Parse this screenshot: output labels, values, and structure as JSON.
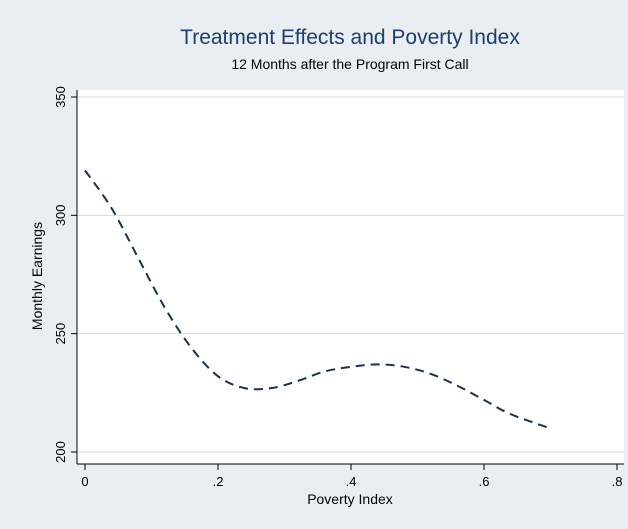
{
  "chart_data": {
    "type": "line",
    "title": "Treatment Effects and Poverty Index",
    "subtitle": "12 Months after the Program First Call",
    "xlabel": "Poverty Index",
    "ylabel": "Monthly Earnings",
    "xlim": [
      0,
      0.8
    ],
    "ylim": [
      200,
      350
    ],
    "xticks": [
      {
        "value": 0,
        "label": "0"
      },
      {
        "value": 0.2,
        "label": ".2"
      },
      {
        "value": 0.4,
        "label": ".4"
      },
      {
        "value": 0.6,
        "label": ".6"
      },
      {
        "value": 0.8,
        "label": ".8"
      }
    ],
    "yticks": [
      {
        "value": 200,
        "label": "200"
      },
      {
        "value": 250,
        "label": "250"
      },
      {
        "value": 300,
        "label": "300"
      },
      {
        "value": 350,
        "label": "350"
      }
    ],
    "grid": true,
    "series": [
      {
        "line_style": "dashed",
        "color": "#1b2f52",
        "x": [
          0,
          0.04,
          0.08,
          0.12,
          0.16,
          0.2,
          0.24,
          0.28,
          0.32,
          0.36,
          0.4,
          0.44,
          0.48,
          0.52,
          0.56,
          0.6,
          0.64,
          0.7
        ],
        "y": [
          319,
          303,
          282,
          261,
          244,
          232,
          227,
          227,
          230,
          234,
          236,
          237,
          236,
          233,
          228,
          222,
          216,
          210
        ]
      }
    ],
    "colors": {
      "outer_background": "#e9eef3",
      "plot_background": "#ffffff",
      "title": "#1f3d6e",
      "grid": "#d6dde5"
    }
  }
}
